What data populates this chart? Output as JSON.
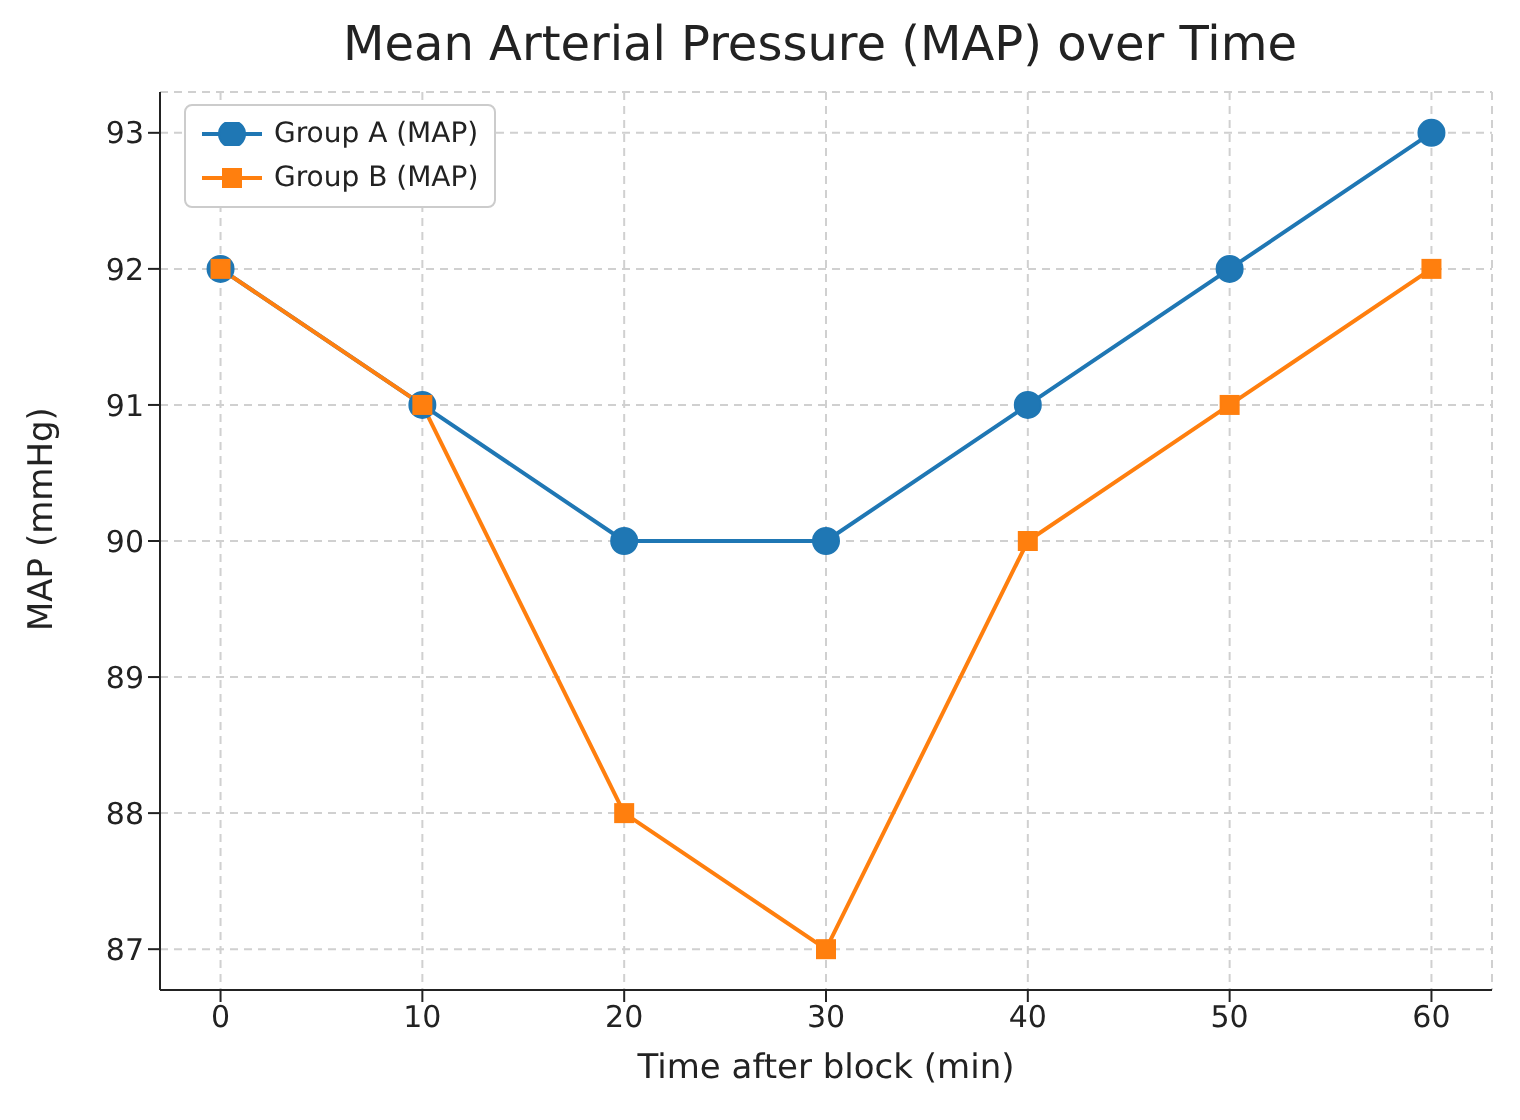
{
  "chart_data": {
    "type": "line",
    "title": "Mean Arterial Pressure (MAP) over Time",
    "xlabel": "Time after block (min)",
    "ylabel": "MAP (mmHg)",
    "x": [
      0,
      10,
      20,
      30,
      40,
      50,
      60
    ],
    "series": [
      {
        "name": "Group A (MAP)",
        "color": "#1f77b4",
        "marker": "circle",
        "values": [
          92,
          91,
          90,
          90,
          91,
          92,
          93
        ]
      },
      {
        "name": "Group B (MAP)",
        "color": "#ff7f0e",
        "marker": "square",
        "values": [
          92,
          91,
          88,
          87,
          90,
          91,
          92
        ]
      }
    ],
    "xlim": [
      -3,
      63
    ],
    "xticks": [
      0,
      10,
      20,
      30,
      40,
      50,
      60
    ],
    "ylim": [
      86.7,
      93.3
    ],
    "yticks": [
      87,
      88,
      89,
      90,
      91,
      92,
      93
    ],
    "grid": true,
    "legend": "top left",
    "line_style": "solid"
  }
}
